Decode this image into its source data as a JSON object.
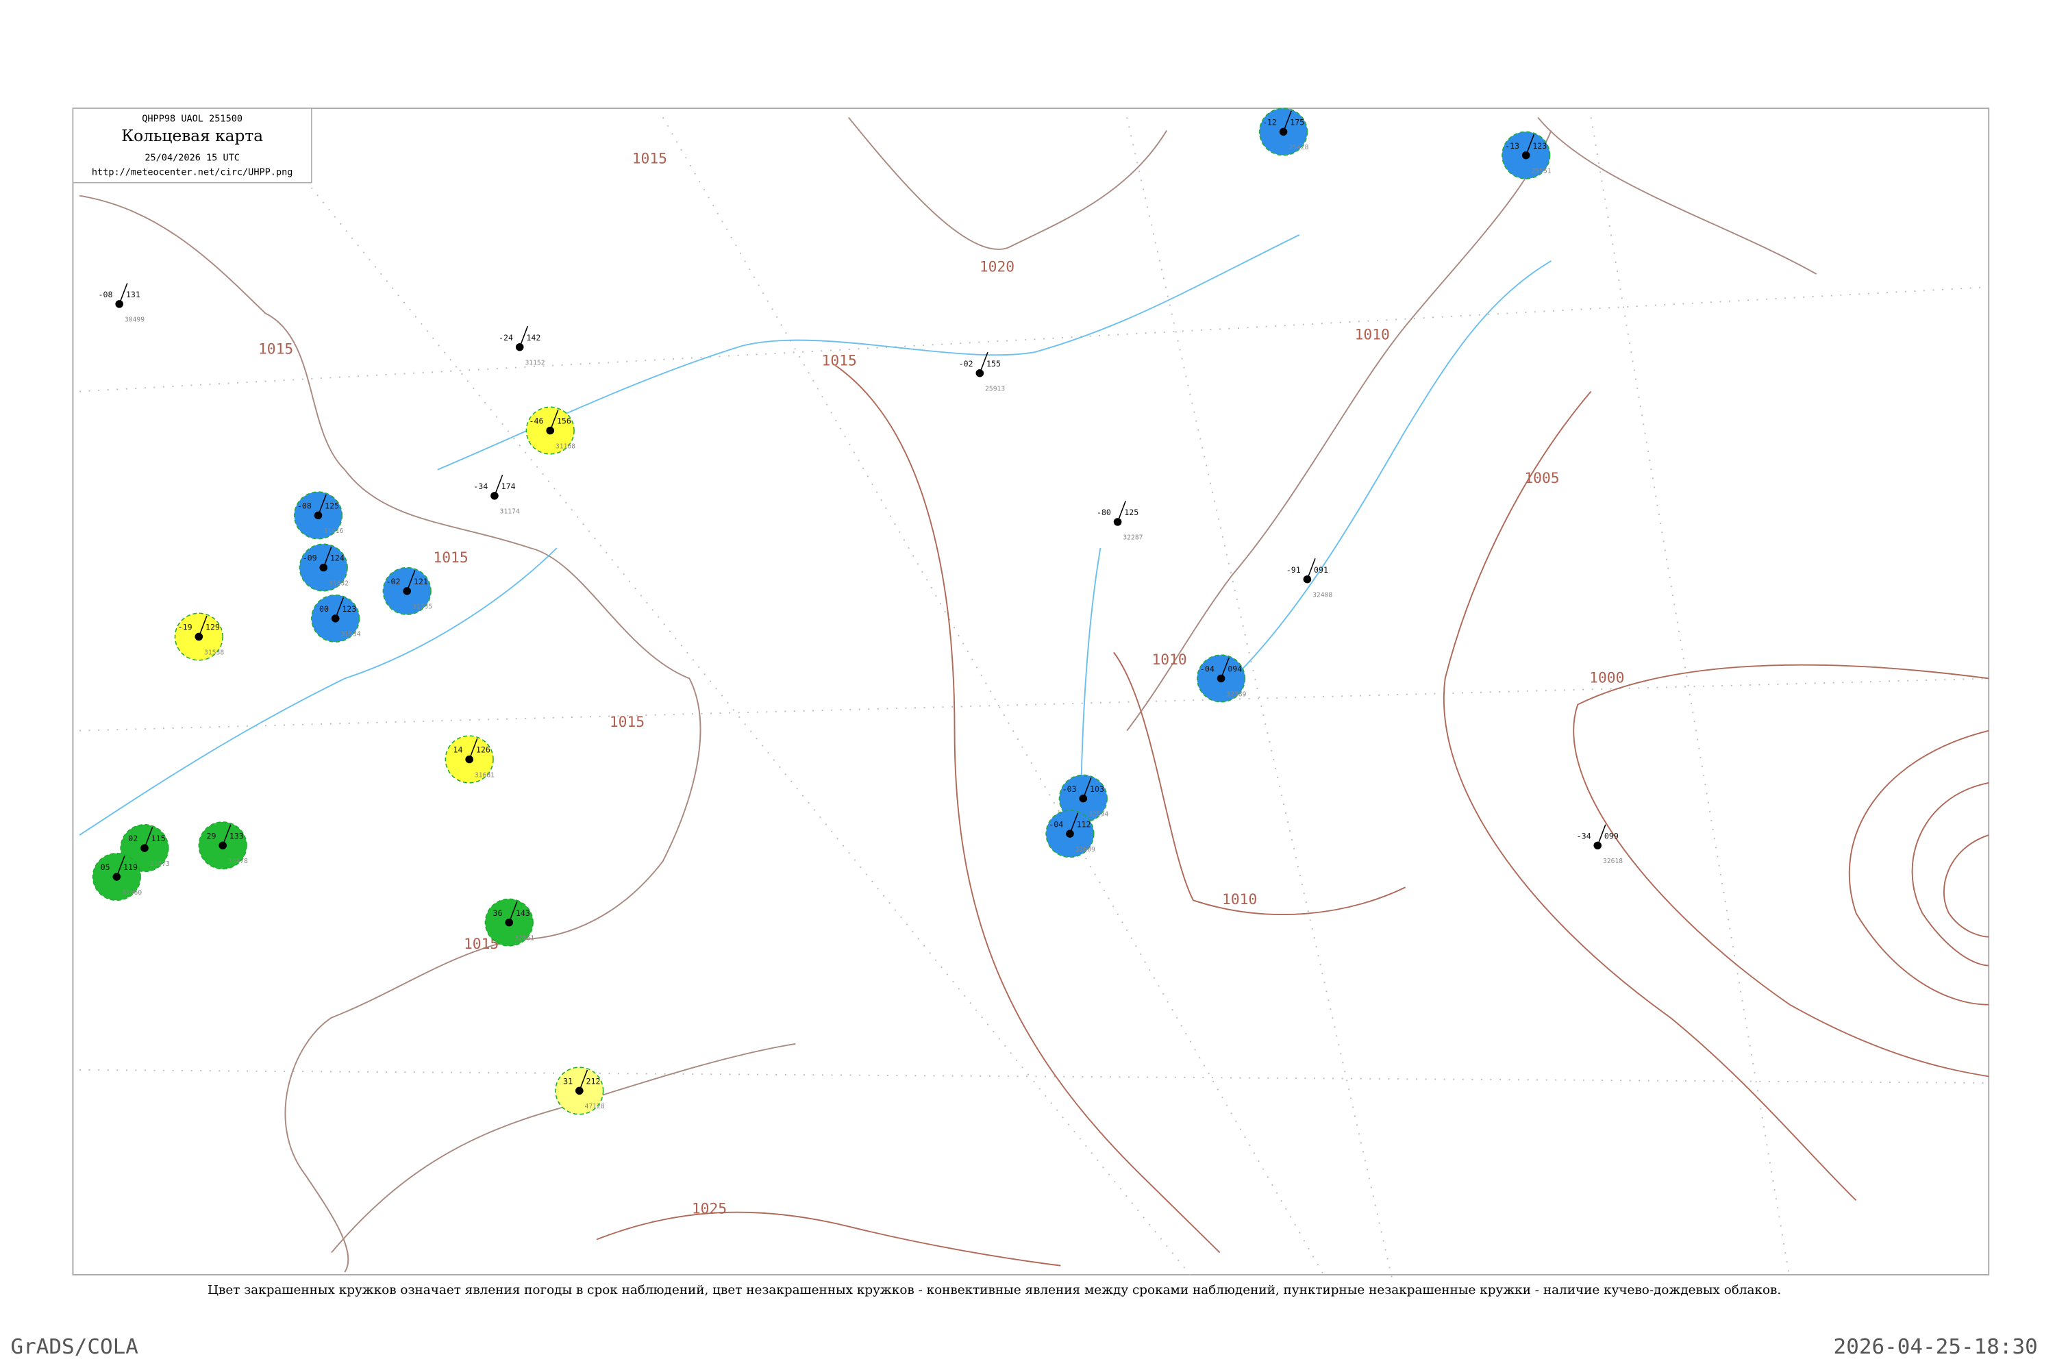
{
  "header": {
    "code": "QHPP98  UAOL  251500",
    "title": "Кольцевая карта",
    "date": "25/04/2026 15 UTC",
    "url": "http://meteocenter.net/circ/UHPP.png"
  },
  "isobars": [
    "1015",
    "1015",
    "1015",
    "1015",
    "1015",
    "1020",
    "1010",
    "1010",
    "1010",
    "1005",
    "1000",
    "1025",
    "1015"
  ],
  "stations": [
    {
      "t": "-46",
      "p": "156",
      "index": "31168",
      "fill": "#ffff3c"
    },
    {
      "t": "-12",
      "p": "175",
      "index": "25428",
      "fill": "#2e8de8"
    },
    {
      "t": "-13",
      "p": "123",
      "index": "25551",
      "fill": "#2e8de8"
    },
    {
      "t": "-08",
      "p": "125",
      "index": "31416",
      "fill": "#2e8de8"
    },
    {
      "t": "-09",
      "p": "124",
      "index": "31532",
      "fill": "#2e8de8"
    },
    {
      "t": "00",
      "p": "123",
      "index": "31534",
      "fill": "#2e8de8"
    },
    {
      "t": "-02",
      "p": "121",
      "index": "31735",
      "fill": "#2e8de8"
    },
    {
      "t": "-04",
      "p": "094",
      "index": "32389",
      "fill": "#2e8de8"
    },
    {
      "t": "-03",
      "p": "103",
      "index": "32594",
      "fill": "#2e8de8"
    },
    {
      "t": "-04",
      "p": "112",
      "index": "32609",
      "fill": "#2e8de8"
    },
    {
      "t": "02",
      "p": "115",
      "index": "31873",
      "fill": "#22bb33"
    },
    {
      "t": "05",
      "p": "119",
      "index": "31960",
      "fill": "#22bb33"
    },
    {
      "t": "29",
      "p": "133",
      "index": "31978",
      "fill": "#22bb33"
    },
    {
      "t": "36",
      "p": "143",
      "index": "32061",
      "fill": "#22bb33"
    },
    {
      "t": "-19",
      "p": "129",
      "index": "31538",
      "fill": "#ffff3c"
    },
    {
      "t": "14",
      "p": "126",
      "index": "31681",
      "fill": "#ffff3c"
    },
    {
      "t": "31",
      "p": "212",
      "index": "47128",
      "fill": "#ffff7a"
    },
    {
      "t": "-08",
      "p": "131",
      "index": "30499"
    },
    {
      "t": "-24",
      "p": "142",
      "index": "31152"
    },
    {
      "t": "-80",
      "p": "125",
      "index": "32287"
    },
    {
      "t": "-34",
      "p": "099",
      "index": "32618"
    },
    {
      "t": "-91",
      "p": "091",
      "index": "32408"
    },
    {
      "t": "-34",
      "p": "174",
      "index": "31174"
    },
    {
      "t": "-02",
      "p": "155",
      "index": "25913"
    }
  ],
  "caption": "Цвет закрашенных кружков означает явления погоды в срок наблюдений, цвет незакрашенных кружков - конвективные явления между сроками наблюдений, пунктирные незакрашенные кружки - наличие кучево-дождевых облаков.",
  "footer": {
    "left": "GrADS/COLA",
    "right": "2026-04-25-18:30"
  }
}
